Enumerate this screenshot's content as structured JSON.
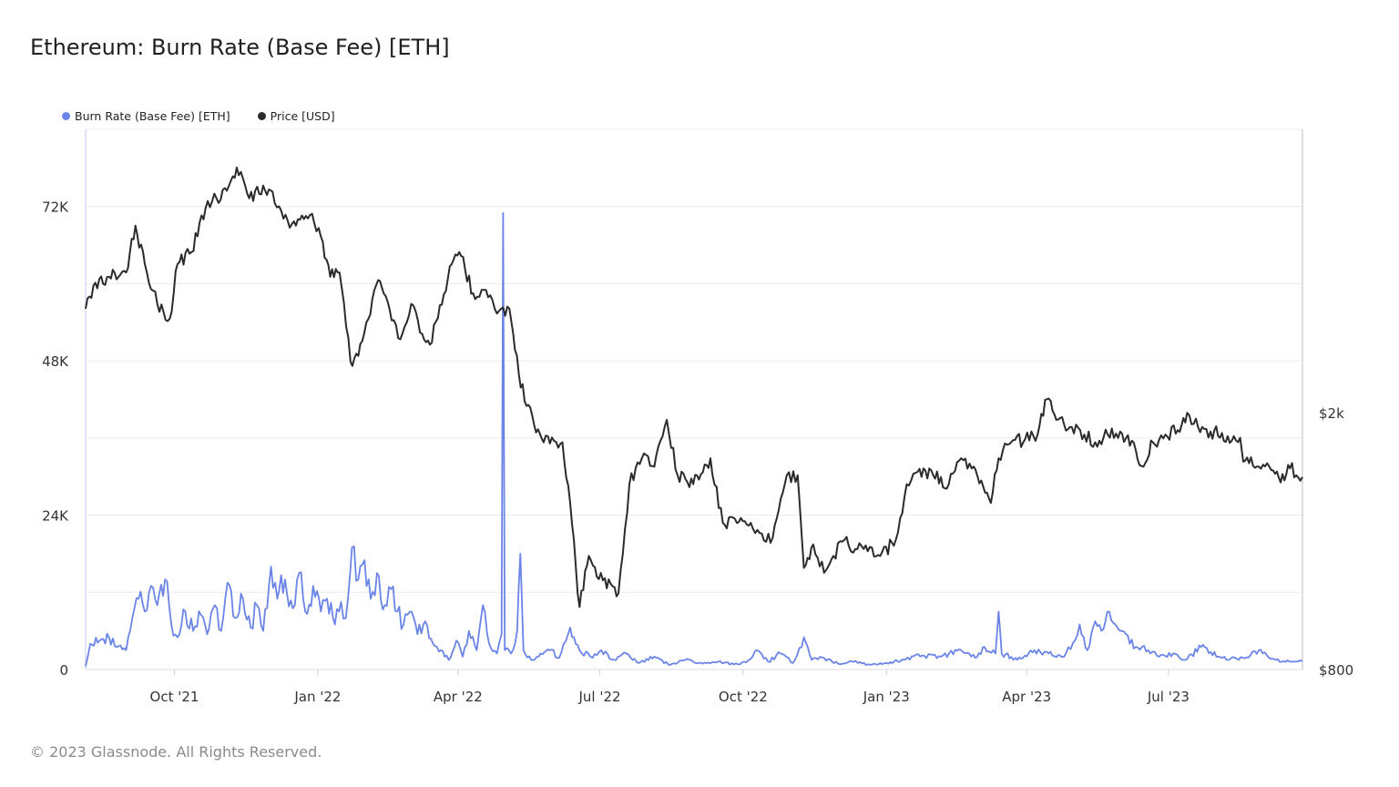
{
  "header": {
    "title": "Ethereum: Burn Rate (Base Fee) [ETH]"
  },
  "footer": {
    "copyright": "© 2023 Glassnode. All Rights Reserved."
  },
  "chart_data": {
    "type": "line",
    "title": "Ethereum: Burn Rate (Base Fee) [ETH]",
    "legend_placement": "top-left",
    "grid": "horizontal",
    "x_range": [
      "2021-08-05",
      "2023-09-25"
    ],
    "x_ticks": [
      {
        "label": "Oct '21",
        "date": "2021-10-01"
      },
      {
        "label": "Jan '22",
        "date": "2022-01-01"
      },
      {
        "label": "Apr '22",
        "date": "2022-04-01"
      },
      {
        "label": "Jul '22",
        "date": "2022-07-01"
      },
      {
        "label": "Oct '22",
        "date": "2022-10-01"
      },
      {
        "label": "Jan '23",
        "date": "2023-01-01"
      },
      {
        "label": "Apr '23",
        "date": "2023-04-01"
      },
      {
        "label": "Jul '23",
        "date": "2023-07-01"
      }
    ],
    "y_left": {
      "range": [
        0,
        84000
      ],
      "ticks": [
        {
          "label": "0",
          "value": 0
        },
        {
          "label": "24K",
          "value": 24000
        },
        {
          "label": "48K",
          "value": 48000
        },
        {
          "label": "72K",
          "value": 72000
        }
      ]
    },
    "y_right": {
      "scale": "log",
      "range": [
        800,
        5500
      ],
      "ticks": [
        {
          "label": "$800",
          "value": 800
        },
        {
          "label": "$2k",
          "value": 2000
        }
      ]
    },
    "series": [
      {
        "name": "Burn Rate (Base Fee) [ETH]",
        "axis": "left",
        "color": "#6a84e8",
        "points": [
          [
            "2021-08-05",
            500
          ],
          [
            "2021-08-08",
            4000
          ],
          [
            "2021-08-14",
            4500
          ],
          [
            "2021-08-20",
            5000
          ],
          [
            "2021-08-25",
            3500
          ],
          [
            "2021-08-31",
            3000
          ],
          [
            "2021-09-04",
            8000
          ],
          [
            "2021-09-08",
            11000
          ],
          [
            "2021-09-12",
            9000
          ],
          [
            "2021-09-16",
            13000
          ],
          [
            "2021-09-20",
            10000
          ],
          [
            "2021-09-25",
            14000
          ],
          [
            "2021-09-29",
            7000
          ],
          [
            "2021-10-03",
            5000
          ],
          [
            "2021-10-08",
            9000
          ],
          [
            "2021-10-13",
            6000
          ],
          [
            "2021-10-18",
            8500
          ],
          [
            "2021-10-22",
            5500
          ],
          [
            "2021-10-27",
            10000
          ],
          [
            "2021-10-31",
            6000
          ],
          [
            "2021-11-04",
            13500
          ],
          [
            "2021-11-09",
            8000
          ],
          [
            "2021-11-14",
            11000
          ],
          [
            "2021-11-19",
            6500
          ],
          [
            "2021-11-23",
            10000
          ],
          [
            "2021-11-27",
            6000
          ],
          [
            "2021-12-02",
            16000
          ],
          [
            "2021-12-06",
            11000
          ],
          [
            "2021-12-11",
            14000
          ],
          [
            "2021-12-16",
            9500
          ],
          [
            "2021-12-20",
            15000
          ],
          [
            "2021-12-24",
            9000
          ],
          [
            "2021-12-29",
            13000
          ],
          [
            "2022-01-03",
            9000
          ],
          [
            "2022-01-07",
            11000
          ],
          [
            "2022-01-12",
            7000
          ],
          [
            "2022-01-16",
            10500
          ],
          [
            "2022-01-19",
            8000
          ],
          [
            "2022-01-23",
            19000
          ],
          [
            "2022-01-27",
            14000
          ],
          [
            "2022-01-31",
            17000
          ],
          [
            "2022-02-04",
            11000
          ],
          [
            "2022-02-08",
            15000
          ],
          [
            "2022-02-13",
            10000
          ],
          [
            "2022-02-17",
            12500
          ],
          [
            "2022-02-21",
            9000
          ],
          [
            "2022-02-25",
            7000
          ],
          [
            "2022-03-01",
            9000
          ],
          [
            "2022-03-06",
            5500
          ],
          [
            "2022-03-11",
            7500
          ],
          [
            "2022-03-16",
            4000
          ],
          [
            "2022-03-21",
            3000
          ],
          [
            "2022-03-26",
            1500
          ],
          [
            "2022-03-31",
            4500
          ],
          [
            "2022-04-04",
            2000
          ],
          [
            "2022-04-08",
            6000
          ],
          [
            "2022-04-13",
            3000
          ],
          [
            "2022-04-17",
            10000
          ],
          [
            "2022-04-21",
            4000
          ],
          [
            "2022-04-26",
            2500
          ],
          [
            "2022-04-29",
            5500
          ],
          [
            "2022-04-30",
            71000
          ],
          [
            "2022-05-01",
            3000
          ],
          [
            "2022-05-05",
            2500
          ],
          [
            "2022-05-09",
            6000
          ],
          [
            "2022-05-11",
            18000
          ],
          [
            "2022-05-13",
            3000
          ],
          [
            "2022-05-18",
            1500
          ],
          [
            "2022-05-24",
            2500
          ],
          [
            "2022-05-30",
            3000
          ],
          [
            "2022-06-05",
            1800
          ],
          [
            "2022-06-12",
            6500
          ],
          [
            "2022-06-18",
            3000
          ],
          [
            "2022-06-25",
            2000
          ],
          [
            "2022-07-02",
            3000
          ],
          [
            "2022-07-10",
            1500
          ],
          [
            "2022-07-18",
            2500
          ],
          [
            "2022-07-26",
            1000
          ],
          [
            "2022-08-05",
            2000
          ],
          [
            "2022-08-15",
            700
          ],
          [
            "2022-08-25",
            1500
          ],
          [
            "2022-09-05",
            900
          ],
          [
            "2022-09-15",
            1200
          ],
          [
            "2022-09-25",
            800
          ],
          [
            "2022-10-03",
            1100
          ],
          [
            "2022-10-10",
            3000
          ],
          [
            "2022-10-17",
            1200
          ],
          [
            "2022-10-25",
            2500
          ],
          [
            "2022-11-02",
            1000
          ],
          [
            "2022-11-09",
            5000
          ],
          [
            "2022-11-14",
            1500
          ],
          [
            "2022-11-22",
            1800
          ],
          [
            "2022-12-01",
            900
          ],
          [
            "2022-12-10",
            1200
          ],
          [
            "2022-12-20",
            800
          ],
          [
            "2023-01-01",
            1000
          ],
          [
            "2023-01-12",
            1500
          ],
          [
            "2023-01-24",
            2200
          ],
          [
            "2023-02-05",
            2000
          ],
          [
            "2023-02-18",
            3000
          ],
          [
            "2023-02-27",
            1800
          ],
          [
            "2023-03-05",
            3500
          ],
          [
            "2023-03-12",
            2500
          ],
          [
            "2023-03-14",
            9000
          ],
          [
            "2023-03-16",
            2500
          ],
          [
            "2023-03-26",
            1500
          ],
          [
            "2023-04-06",
            3000
          ],
          [
            "2023-04-15",
            2500
          ],
          [
            "2023-04-25",
            2000
          ],
          [
            "2023-05-02",
            4500
          ],
          [
            "2023-05-05",
            7000
          ],
          [
            "2023-05-10",
            3000
          ],
          [
            "2023-05-15",
            7500
          ],
          [
            "2023-05-19",
            6000
          ],
          [
            "2023-05-24",
            9000
          ],
          [
            "2023-05-28",
            7000
          ],
          [
            "2023-06-01",
            6000
          ],
          [
            "2023-06-10",
            3500
          ],
          [
            "2023-06-18",
            3000
          ],
          [
            "2023-06-25",
            2000
          ],
          [
            "2023-07-04",
            2500
          ],
          [
            "2023-07-12",
            1500
          ],
          [
            "2023-07-22",
            3500
          ],
          [
            "2023-08-02",
            2000
          ],
          [
            "2023-08-15",
            1500
          ],
          [
            "2023-08-28",
            3000
          ],
          [
            "2023-09-08",
            1500
          ],
          [
            "2023-09-18",
            1200
          ],
          [
            "2023-09-25",
            1300
          ]
        ]
      },
      {
        "name": "Price [USD]",
        "axis": "right",
        "color": "#2b2b2b",
        "points": [
          [
            "2021-08-05",
            2900
          ],
          [
            "2021-08-10",
            3150
          ],
          [
            "2021-08-20",
            3250
          ],
          [
            "2021-08-31",
            3300
          ],
          [
            "2021-09-06",
            3900
          ],
          [
            "2021-09-12",
            3400
          ],
          [
            "2021-09-20",
            2950
          ],
          [
            "2021-09-28",
            2800
          ],
          [
            "2021-10-03",
            3400
          ],
          [
            "2021-10-12",
            3550
          ],
          [
            "2021-10-21",
            4150
          ],
          [
            "2021-10-28",
            4300
          ],
          [
            "2021-11-05",
            4500
          ],
          [
            "2021-11-10",
            4800
          ],
          [
            "2021-11-18",
            4300
          ],
          [
            "2021-11-27",
            4500
          ],
          [
            "2021-12-03",
            4400
          ],
          [
            "2021-12-10",
            4000
          ],
          [
            "2021-12-18",
            3900
          ],
          [
            "2021-12-27",
            4050
          ],
          [
            "2022-01-03",
            3750
          ],
          [
            "2022-01-09",
            3250
          ],
          [
            "2022-01-15",
            3300
          ],
          [
            "2022-01-22",
            2400
          ],
          [
            "2022-01-27",
            2450
          ],
          [
            "2022-02-05",
            3000
          ],
          [
            "2022-02-10",
            3200
          ],
          [
            "2022-02-16",
            2900
          ],
          [
            "2022-02-23",
            2600
          ],
          [
            "2022-03-02",
            2950
          ],
          [
            "2022-03-09",
            2650
          ],
          [
            "2022-03-14",
            2550
          ],
          [
            "2022-03-28",
            3400
          ],
          [
            "2022-04-03",
            3500
          ],
          [
            "2022-04-12",
            3000
          ],
          [
            "2022-04-19",
            3100
          ],
          [
            "2022-04-26",
            2850
          ],
          [
            "2022-05-04",
            2900
          ],
          [
            "2022-05-10",
            2300
          ],
          [
            "2022-05-15",
            2050
          ],
          [
            "2022-05-26",
            1800
          ],
          [
            "2022-06-07",
            1800
          ],
          [
            "2022-06-12",
            1450
          ],
          [
            "2022-06-18",
            1000
          ],
          [
            "2022-06-24",
            1200
          ],
          [
            "2022-07-03",
            1100
          ],
          [
            "2022-07-13",
            1050
          ],
          [
            "2022-07-20",
            1550
          ],
          [
            "2022-07-28",
            1700
          ],
          [
            "2022-08-05",
            1650
          ],
          [
            "2022-08-13",
            1950
          ],
          [
            "2022-08-20",
            1600
          ],
          [
            "2022-08-30",
            1550
          ],
          [
            "2022-09-10",
            1700
          ],
          [
            "2022-09-18",
            1350
          ],
          [
            "2022-09-27",
            1350
          ],
          [
            "2022-10-06",
            1350
          ],
          [
            "2022-10-13",
            1300
          ],
          [
            "2022-10-20",
            1280
          ],
          [
            "2022-10-29",
            1600
          ],
          [
            "2022-11-05",
            1600
          ],
          [
            "2022-11-09",
            1150
          ],
          [
            "2022-11-15",
            1250
          ],
          [
            "2022-11-22",
            1130
          ],
          [
            "2022-11-28",
            1200
          ],
          [
            "2022-12-05",
            1270
          ],
          [
            "2022-12-12",
            1230
          ],
          [
            "2022-12-20",
            1220
          ],
          [
            "2022-12-28",
            1200
          ],
          [
            "2023-01-07",
            1270
          ],
          [
            "2023-01-14",
            1550
          ],
          [
            "2023-01-21",
            1620
          ],
          [
            "2023-01-31",
            1600
          ],
          [
            "2023-02-10",
            1550
          ],
          [
            "2023-02-18",
            1700
          ],
          [
            "2023-02-26",
            1650
          ],
          [
            "2023-03-09",
            1450
          ],
          [
            "2023-03-14",
            1700
          ],
          [
            "2023-03-22",
            1800
          ],
          [
            "2023-03-31",
            1820
          ],
          [
            "2023-04-08",
            1850
          ],
          [
            "2023-04-14",
            2100
          ],
          [
            "2023-04-20",
            1950
          ],
          [
            "2023-04-30",
            1900
          ],
          [
            "2023-05-08",
            1850
          ],
          [
            "2023-05-15",
            1800
          ],
          [
            "2023-05-23",
            1850
          ],
          [
            "2023-05-31",
            1870
          ],
          [
            "2023-06-10",
            1750
          ],
          [
            "2023-06-15",
            1650
          ],
          [
            "2023-06-21",
            1800
          ],
          [
            "2023-06-29",
            1850
          ],
          [
            "2023-07-07",
            1880
          ],
          [
            "2023-07-13",
            2000
          ],
          [
            "2023-07-20",
            1900
          ],
          [
            "2023-07-28",
            1870
          ],
          [
            "2023-08-08",
            1840
          ],
          [
            "2023-08-16",
            1830
          ],
          [
            "2023-08-18",
            1680
          ],
          [
            "2023-08-28",
            1650
          ],
          [
            "2023-09-05",
            1630
          ],
          [
            "2023-09-11",
            1560
          ],
          [
            "2023-09-17",
            1640
          ],
          [
            "2023-09-25",
            1590
          ]
        ]
      }
    ]
  }
}
